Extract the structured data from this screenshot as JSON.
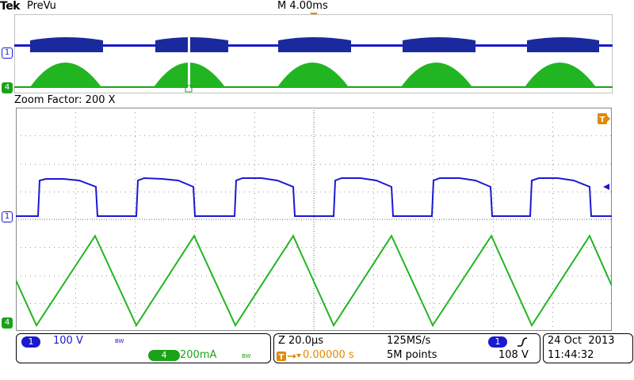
{
  "header": {
    "brand": "Tek",
    "mode": "PreVu",
    "timebase": "M 4.00ms",
    "trigger_marker": "T"
  },
  "zoom": {
    "label": "Zoom Factor: 200 X"
  },
  "channels": {
    "ch1": {
      "number": "1",
      "scale": "100 V",
      "bw": "BW",
      "color": "#1a1ad0"
    },
    "ch4": {
      "number": "4",
      "scale": "200mA",
      "bw": "BW",
      "color": "#1aa31a"
    }
  },
  "timing": {
    "zoom_time": "Z 20.0µs",
    "sample_rate": "125MS/s",
    "trigger_delay": "0.00000 s",
    "record_length": "5M points"
  },
  "trigger": {
    "source": "1",
    "slope_icon": "rising-edge-icon",
    "level": "108 V"
  },
  "datetime": {
    "date": "24 Oct  2013",
    "time": "11:44:32"
  },
  "markers": {
    "ground_ch1": "1",
    "ground_ch4": "4",
    "trigger_right": "T"
  },
  "colors": {
    "ch1": "#1a1ad0",
    "ch4": "#1aa31a",
    "trigger": "#e08a00",
    "grid": "#9a9a9a"
  }
}
